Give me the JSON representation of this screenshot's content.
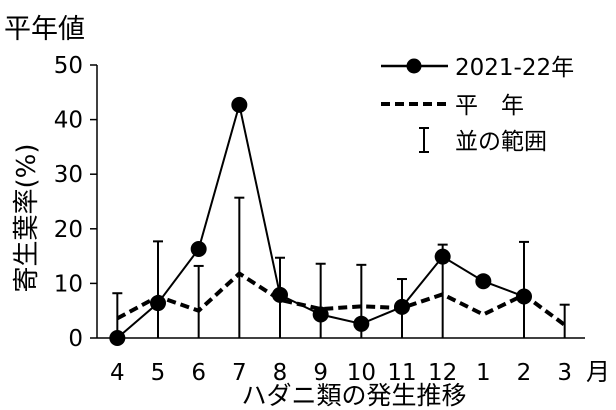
{
  "chart_data": {
    "type": "line",
    "title": "平年値",
    "xlabel": "ハダニ類の発生推移",
    "ylabel": "寄生葉率(%)",
    "x_unit": "月",
    "categories": [
      "4",
      "5",
      "6",
      "7",
      "8",
      "9",
      "10",
      "11",
      "12",
      "1",
      "2",
      "3"
    ],
    "ylim": [
      0,
      50
    ],
    "yticks": [
      0,
      10,
      20,
      30,
      40,
      50
    ],
    "grid": false,
    "legend_position": "top-right",
    "series": [
      {
        "name": "2021-22年",
        "style": "solid-markers",
        "values": [
          0,
          6.4,
          16.3,
          42.7,
          7.9,
          4.3,
          2.6,
          5.7,
          14.9,
          10.4,
          7.6,
          null
        ]
      },
      {
        "name": "平　年",
        "style": "dashed",
        "values": [
          3.6,
          7.6,
          5.0,
          11.8,
          7.0,
          5.3,
          5.8,
          5.5,
          8.0,
          4.3,
          7.9,
          2.4
        ],
        "range_upper": [
          8.2,
          17.7,
          13.2,
          25.7,
          14.7,
          13.6,
          13.4,
          10.8,
          17.1,
          null,
          17.6,
          6.1
        ]
      }
    ],
    "range_legend_label": "並の範囲"
  }
}
